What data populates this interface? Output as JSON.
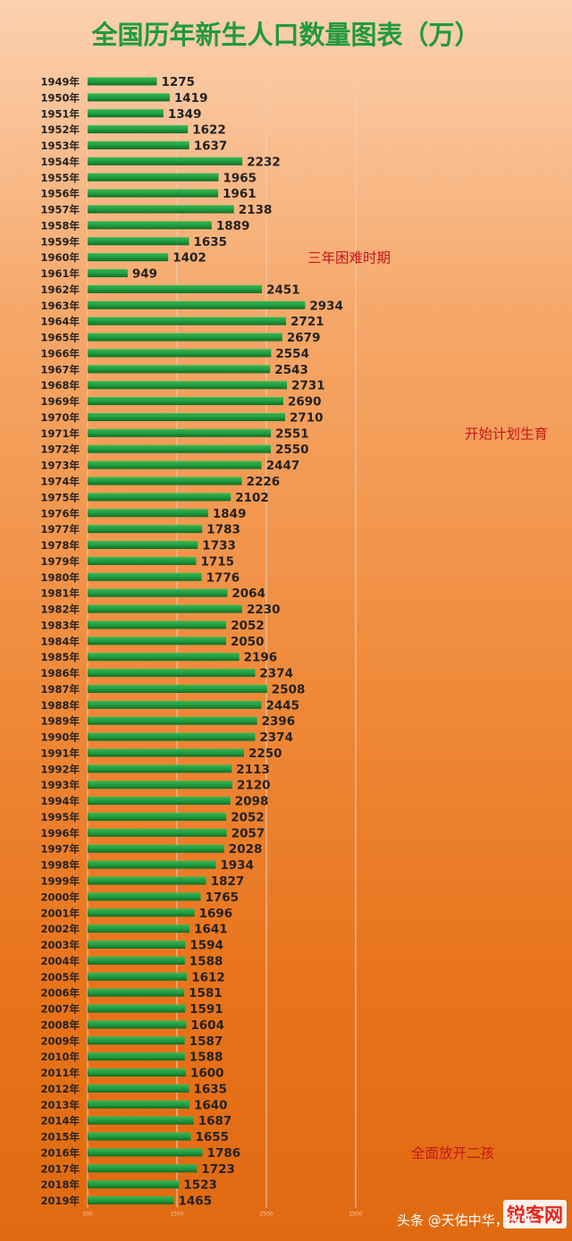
{
  "chart_data": {
    "type": "bar",
    "orientation": "horizontal",
    "title": "全国历年新生人口数量图表（万）",
    "categories": [
      "1949年",
      "1950年",
      "1951年",
      "1952年",
      "1953年",
      "1954年",
      "1955年",
      "1956年",
      "1957年",
      "1958年",
      "1959年",
      "1960年",
      "1961年",
      "1962年",
      "1963年",
      "1964年",
      "1965年",
      "1966年",
      "1967年",
      "1968年",
      "1969年",
      "1970年",
      "1971年",
      "1972年",
      "1973年",
      "1974年",
      "1975年",
      "1976年",
      "1977年",
      "1978年",
      "1979年",
      "1980年",
      "1981年",
      "1982年",
      "1983年",
      "1984年",
      "1985年",
      "1986年",
      "1987年",
      "1988年",
      "1989年",
      "1990年",
      "1991年",
      "1992年",
      "1993年",
      "1994年",
      "1995年",
      "1996年",
      "1997年",
      "1998年",
      "1999年",
      "2000年",
      "2001年",
      "2002年",
      "2003年",
      "2004年",
      "2005年",
      "2006年",
      "2007年",
      "2008年",
      "2009年",
      "2010年",
      "2011年",
      "2012年",
      "2013年",
      "2014年",
      "2015年",
      "2016年",
      "2017年",
      "2018年",
      "2019年"
    ],
    "values": [
      1275,
      1419,
      1349,
      1622,
      1637,
      2232,
      1965,
      1961,
      2138,
      1889,
      1635,
      1402,
      949,
      2451,
      2934,
      2721,
      2679,
      2554,
      2543,
      2731,
      2690,
      2710,
      2551,
      2550,
      2447,
      2226,
      2102,
      1849,
      1783,
      1733,
      1715,
      1776,
      2064,
      2230,
      2052,
      2050,
      2196,
      2374,
      2508,
      2445,
      2396,
      2374,
      2250,
      2113,
      2120,
      2098,
      2052,
      2057,
      2028,
      1934,
      1827,
      1765,
      1696,
      1641,
      1594,
      1588,
      1612,
      1581,
      1591,
      1604,
      1587,
      1588,
      1600,
      1635,
      1640,
      1687,
      1655,
      1786,
      1723,
      1523,
      1465
    ],
    "xlim": [
      500,
      3500
    ],
    "xticks": [
      "500",
      "1500",
      "2500",
      "2500"
    ],
    "grid": true,
    "annotations": [
      {
        "text": "三年困难时期",
        "at_category": "1960年"
      },
      {
        "text": "开始计划生育",
        "at_category": "1971年"
      },
      {
        "text": "全面放开二孩",
        "at_category": "2016年"
      }
    ],
    "colors": {
      "bar": "#1f9a3e",
      "bar_dark": "#136b27",
      "title": "#1f9a3e",
      "annotation": "#c8161d",
      "label": "#222222",
      "grid": "#e7d0bd"
    }
  },
  "watermark": {
    "text": "锐客网",
    "credit": "头条 @天佑中华，东来"
  }
}
